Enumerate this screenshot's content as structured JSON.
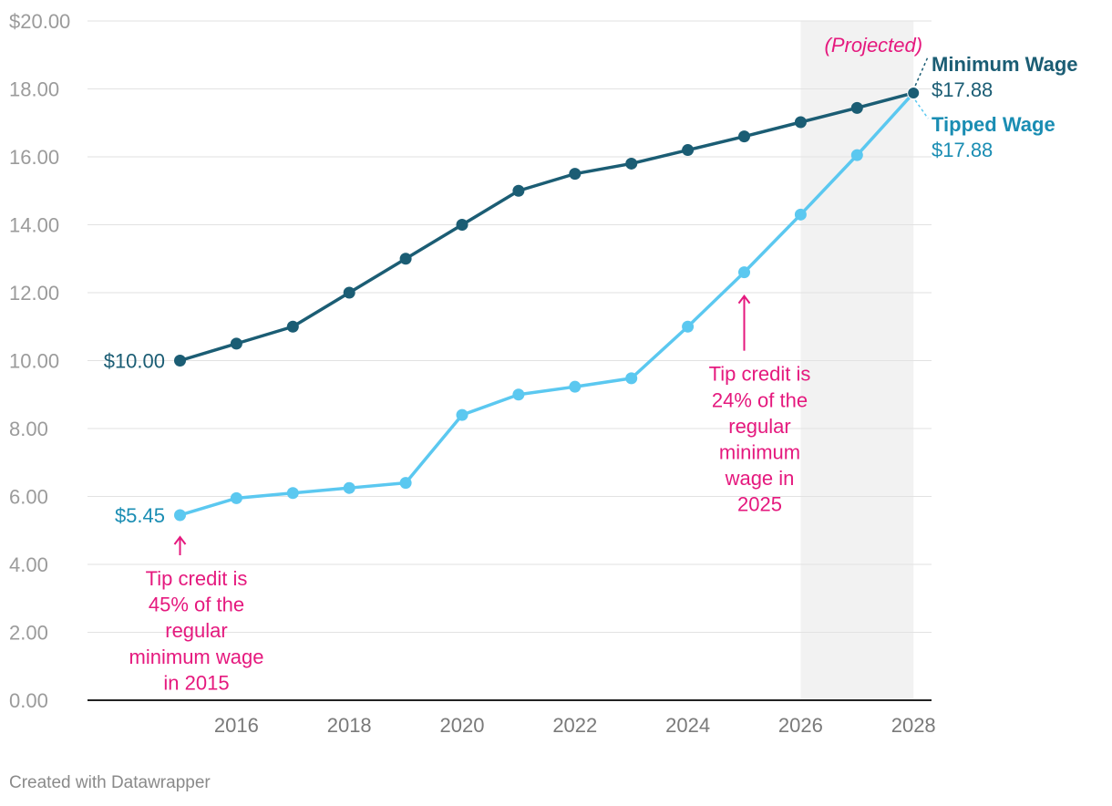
{
  "chart_data": {
    "type": "line",
    "x": [
      2015,
      2016,
      2017,
      2018,
      2019,
      2020,
      2021,
      2022,
      2023,
      2024,
      2025,
      2026,
      2027,
      2028
    ],
    "series": [
      {
        "name": "Minimum Wage",
        "color": "#1b5d74",
        "values": [
          10.0,
          10.5,
          11.0,
          12.0,
          13.0,
          14.0,
          15.0,
          15.5,
          15.8,
          16.2,
          16.6,
          17.02,
          17.44,
          17.88
        ]
      },
      {
        "name": "Tipped Wage",
        "color": "#5bc8f0",
        "values": [
          5.45,
          5.95,
          6.1,
          6.25,
          6.4,
          8.4,
          9.0,
          9.23,
          9.48,
          11.0,
          12.6,
          14.3,
          16.05,
          17.88
        ]
      }
    ],
    "ylim": [
      0,
      20
    ],
    "xlim": [
      2013.4,
      2028.3
    ],
    "yticks": [
      "$20.00",
      "18.00",
      "16.00",
      "14.00",
      "12.00",
      "10.00",
      "8.00",
      "6.00",
      "4.00",
      "2.00",
      "0.00"
    ],
    "ytick_values": [
      20,
      18,
      16,
      14,
      12,
      10,
      8,
      6,
      4,
      2,
      0
    ],
    "xticks": [
      2016,
      2018,
      2020,
      2022,
      2024,
      2026,
      2028
    ],
    "projected_range": [
      2026,
      2028
    ],
    "projected_label": "(Projected)",
    "start_labels": {
      "minimum": "$10.00",
      "tipped": "$5.45"
    },
    "end_labels": {
      "minimum": {
        "name": "Minimum Wage",
        "value": "$17.88"
      },
      "tipped": {
        "name": "Tipped Wage",
        "value": "$17.88"
      }
    },
    "annotations": [
      {
        "year": 2015,
        "value": 5.45,
        "lines": [
          "Tip credit is",
          "45% of the",
          "regular",
          "minimum wage",
          "in 2015"
        ]
      },
      {
        "year": 2025,
        "value": 12.6,
        "lines": [
          "Tip credit is",
          "24% of the",
          "regular",
          "minimum",
          "wage in",
          "2025"
        ]
      }
    ],
    "colors": {
      "annotation": "#e5197e",
      "tipped_label": "#1a8db3",
      "projected_shade": "#f2f2f2"
    }
  },
  "footer": {
    "credit": "Created with Datawrapper"
  }
}
